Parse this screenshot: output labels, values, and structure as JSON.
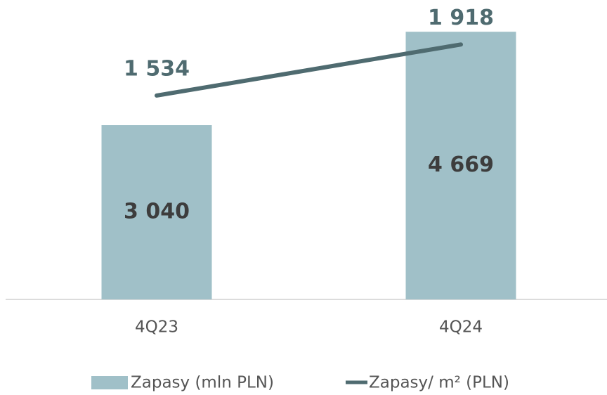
{
  "chart_data": {
    "type": "bar",
    "categories": [
      "4Q23",
      "4Q24"
    ],
    "series": [
      {
        "name": "Zapasy (mln PLN)",
        "color": "#a0c0c8",
        "values": [
          3040,
          4669
        ],
        "value_labels": [
          "3 040",
          "4 669"
        ]
      },
      {
        "name": "Zapasy/ m² (PLN)",
        "type": "line",
        "axis": "y2",
        "color": "#4f6b70",
        "values": [
          1534,
          1918
        ],
        "value_labels": [
          "1 534",
          "1 918"
        ]
      }
    ],
    "ylim": [
      0,
      5100
    ],
    "y2lim": [
      0,
      2200
    ],
    "grid": false,
    "legend": "bottom"
  }
}
